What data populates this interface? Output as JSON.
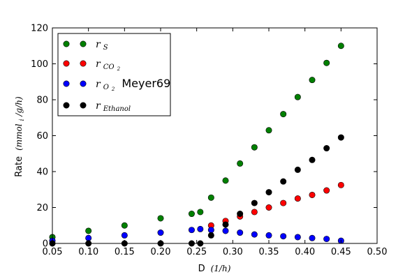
{
  "chart_data": {
    "type": "scatter",
    "xlabel": {
      "prefix": "D",
      "math": "(1/h)"
    },
    "ylabel": {
      "prefix": "Rate",
      "math": "(mmol",
      "sub": "i",
      "rest": "/g/h)"
    },
    "xlim": [
      0.05,
      0.5
    ],
    "ylim": [
      0,
      120
    ],
    "xticks": [
      "0.05",
      "0.10",
      "0.15",
      "0.20",
      "0.25",
      "0.30",
      "0.35",
      "0.40",
      "0.45",
      "0.50"
    ],
    "xtick_values": [
      0.05,
      0.1,
      0.15,
      0.2,
      0.25,
      0.3,
      0.35,
      0.4,
      0.45,
      0.5
    ],
    "yticks": [
      "0",
      "20",
      "40",
      "60",
      "80",
      "100",
      "120"
    ],
    "ytick_values": [
      0,
      20,
      40,
      60,
      80,
      100,
      120
    ],
    "grid": false,
    "legend_position": "top-left",
    "series": [
      {
        "name": "r_S",
        "label_base": "r",
        "label_sub": "S",
        "label_sub2": "",
        "label_extra": "",
        "color": "#008000",
        "x": [
          0.05,
          0.1,
          0.15,
          0.2,
          0.243,
          0.255,
          0.27,
          0.29,
          0.31,
          0.33,
          0.35,
          0.37,
          0.39,
          0.41,
          0.43,
          0.45
        ],
        "y": [
          3.5,
          7,
          10,
          14,
          16.5,
          17.5,
          25.5,
          35,
          44.5,
          53.5,
          63,
          72,
          81.5,
          91,
          100.5,
          110
        ]
      },
      {
        "name": "r_CO2",
        "label_base": "r",
        "label_sub": "CO",
        "label_sub2": "2",
        "label_extra": "",
        "color": "#ff0000",
        "x": [
          0.27,
          0.29,
          0.31,
          0.33,
          0.35,
          0.37,
          0.39,
          0.41,
          0.43,
          0.45
        ],
        "y": [
          10,
          12.5,
          15,
          17.5,
          20,
          22.5,
          25,
          27,
          29.5,
          32.5
        ]
      },
      {
        "name": "r_O2 Meyer69",
        "label_base": "r",
        "label_sub": "O",
        "label_sub2": "2",
        "label_extra": "Meyer69",
        "color": "#0000ff",
        "x": [
          0.05,
          0.1,
          0.15,
          0.2,
          0.243,
          0.255,
          0.27,
          0.29,
          0.31,
          0.33,
          0.35,
          0.37,
          0.39,
          0.41,
          0.43,
          0.45
        ],
        "y": [
          1.5,
          3,
          4.5,
          6,
          7.5,
          8,
          7.5,
          7,
          6,
          5,
          4.5,
          4,
          3.5,
          3,
          2.5,
          1.5
        ]
      },
      {
        "name": "r_Ethanol",
        "label_base": "r",
        "label_sub": "Ethanol",
        "label_sub2": "",
        "label_extra": "",
        "color": "#000000",
        "x": [
          0.05,
          0.1,
          0.15,
          0.2,
          0.243,
          0.255,
          0.27,
          0.29,
          0.31,
          0.33,
          0.35,
          0.37,
          0.39,
          0.41,
          0.43,
          0.45
        ],
        "y": [
          0,
          0,
          0,
          0,
          0,
          0,
          4.5,
          10.5,
          16.5,
          22.5,
          28.5,
          34.5,
          41,
          46.5,
          53,
          59
        ]
      }
    ]
  }
}
